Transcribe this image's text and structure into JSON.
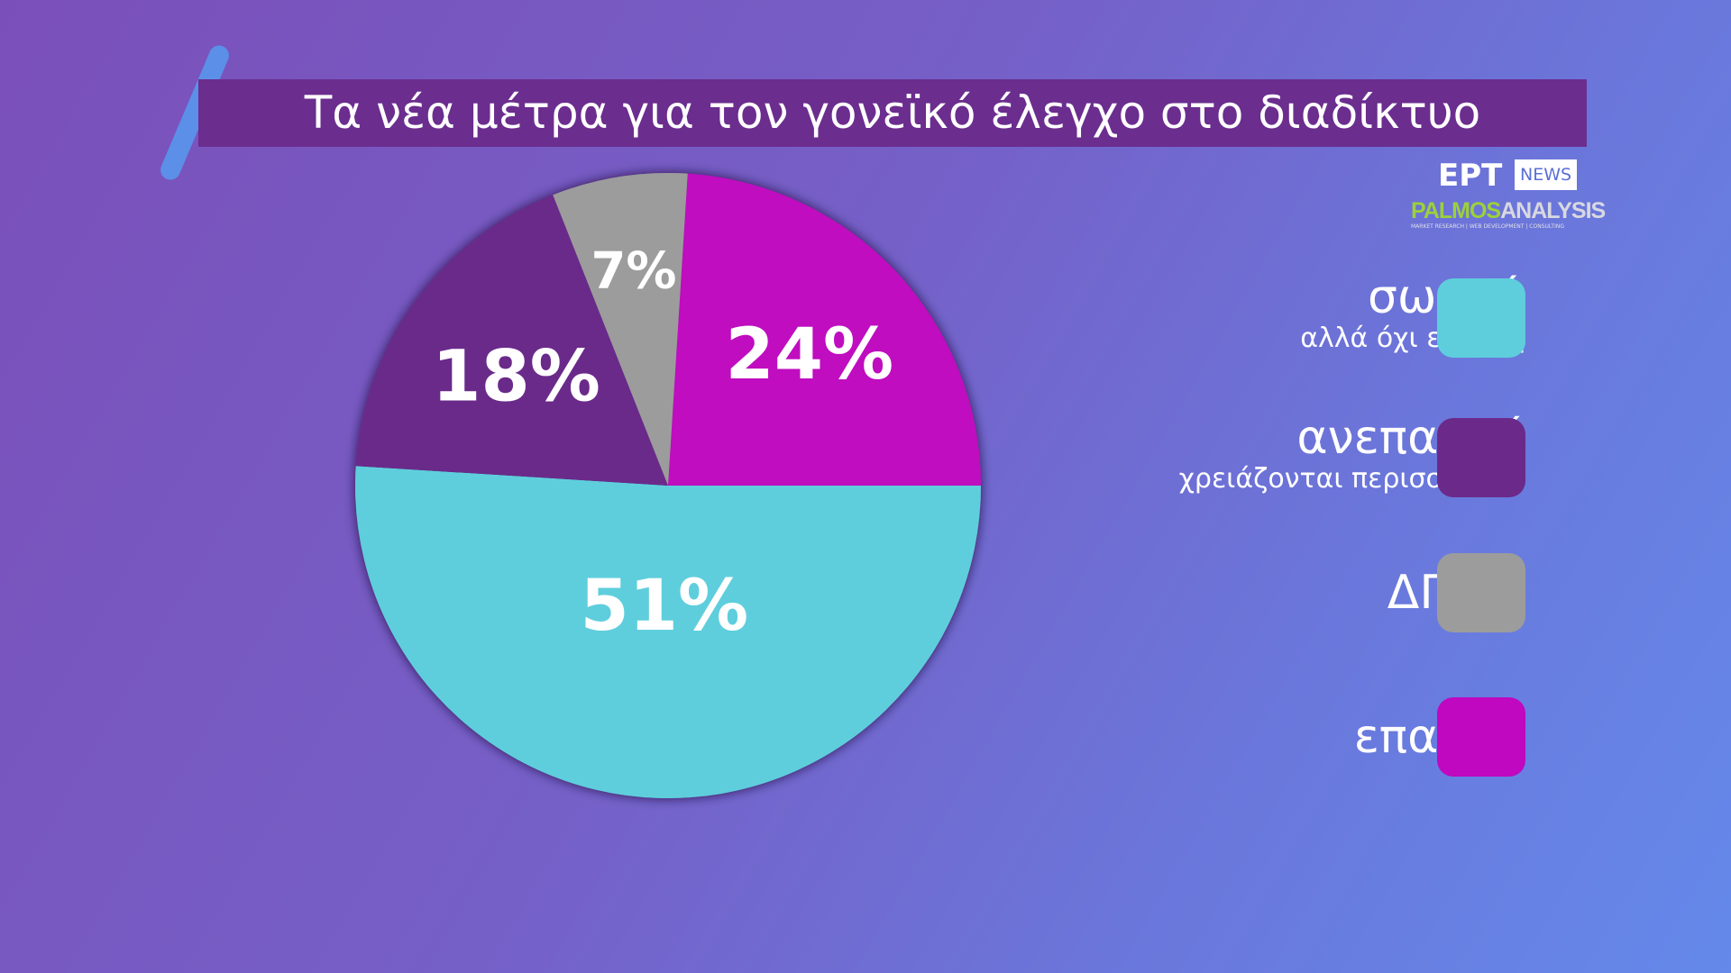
{
  "title": "Τα νέα μέτρα για τον γονεϊκό έλεγχο στο διαδίκτυο",
  "logos": {
    "ert": "ΕΡΤ",
    "news": "NEWS",
    "palmos_green": "PALMOS",
    "palmos_gray": "ANALYSIS",
    "palmos_sub": "MARKET RESEARCH | WEB DEVELOPMENT | CONSULTING"
  },
  "chart_data": {
    "type": "pie",
    "title": "Τα νέα μέτρα για τον γονεϊκό έλεγχο στο διαδίκτυο",
    "start_angle_deg": 3.6,
    "direction": "clockwise",
    "slices": [
      {
        "name": "επαρκή",
        "value": 24,
        "label": "24%",
        "color": "#bf08bf"
      },
      {
        "name": "σωστά αλλά όχι επαρκή",
        "value": 51,
        "label": "51%",
        "color": "#5ecedc"
      },
      {
        "name": "ανεπαρκή χρειάζονται περισσότερα",
        "value": 18,
        "label": "18%",
        "color": "#6b2a8a"
      },
      {
        "name": "ΔΓ/ΔΑ",
        "value": 7,
        "label": "7%",
        "color": "#9c9c9c"
      }
    ],
    "legend_placement": "right"
  },
  "legend": [
    {
      "main": "σωστά",
      "sub": "αλλά όχι επαρκή",
      "color": "#5ecedc"
    },
    {
      "main": "ανεπαρκή",
      "sub": "χρειάζονται περισσότερα",
      "color": "#6b2a8a"
    },
    {
      "main": "ΔΓ/ΔΑ",
      "sub": "",
      "color": "#9c9c9c"
    },
    {
      "main": "επαρκή",
      "sub": "",
      "color": "#bf08bf"
    }
  ]
}
